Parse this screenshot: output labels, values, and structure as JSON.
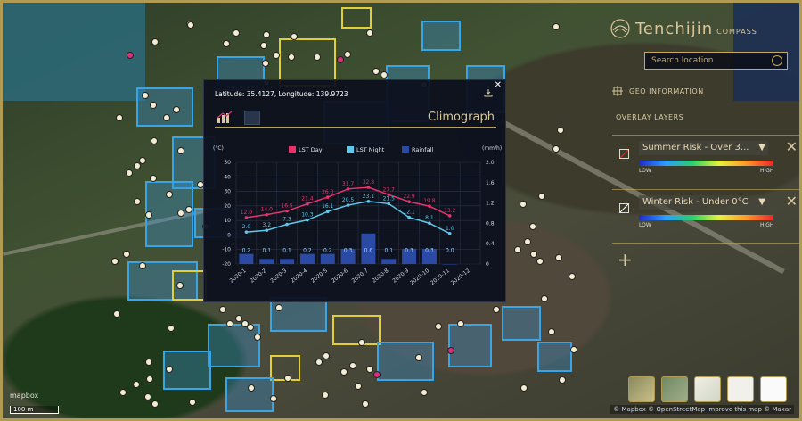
{
  "app": {
    "name": "Tenchijin",
    "product": "COMPASS"
  },
  "search": {
    "placeholder": "Search location"
  },
  "sections": {
    "geo": "GEO INFORMATION",
    "overlay": "OVERLAY LAYERS"
  },
  "layers": [
    {
      "label": "Summer Risk - Over 3...",
      "low": "LOW",
      "high": "HIGH",
      "swatch": "#c0392b"
    },
    {
      "label": "Winter Risk - Under 0°C",
      "low": "LOW",
      "high": "HIGH",
      "swatch": "#ffffff"
    }
  ],
  "popup": {
    "coords": "Latitude: 35.4127, Longitude: 139.9723",
    "title": "Climograph"
  },
  "chart_data": {
    "type": "line",
    "categories": [
      "2020-1",
      "2020-2",
      "2020-3",
      "2020-4",
      "2020-5",
      "2020-6",
      "2020-7",
      "2020-8",
      "2020-9",
      "2020-10",
      "2020-11",
      "2020-12"
    ],
    "series": [
      {
        "name": "LST Day",
        "type": "line",
        "color": "#e8336e",
        "axis": "left",
        "values": [
          12.0,
          14.0,
          16.5,
          21.4,
          26.0,
          31.7,
          32.8,
          27.7,
          22.9,
          19.8,
          13.2,
          null
        ]
      },
      {
        "name": "LST Night",
        "type": "line",
        "color": "#5ec8e8",
        "axis": "left",
        "values": [
          2.0,
          3.2,
          7.3,
          10.3,
          16.1,
          20.5,
          23.1,
          21.5,
          12.1,
          8.1,
          1.0,
          null
        ]
      },
      {
        "name": "Rainfall",
        "type": "bar",
        "color": "#2a4aa6",
        "axis": "right",
        "values": [
          0.2,
          0.1,
          0.1,
          0.2,
          0.2,
          0.3,
          0.6,
          0.1,
          0.3,
          0.3,
          0.0,
          null
        ]
      }
    ],
    "day_labels": [
      "12.0",
      "14.0",
      "16.5",
      "21.4",
      "26.0",
      "31.7",
      "32.8",
      "27.7",
      "22.9",
      "19.8",
      "13.2"
    ],
    "night_labels": [
      "2.0",
      "3.2",
      "7.3",
      "10.3",
      "16.1",
      "20.5",
      "23.1",
      "21.5",
      "12.1",
      "8.1",
      "1.0"
    ],
    "rain_labels": [
      "0.2",
      "0.1",
      "0.1",
      "0.2",
      "0.2",
      "0.3",
      "0.6",
      "0.1",
      "0.3",
      "0.3",
      "0.0"
    ],
    "ylabel_left": "(°C)",
    "ylabel_right": "(mm/h)",
    "ylim_left": [
      -20,
      50
    ],
    "ylim_right": [
      0,
      2.0
    ],
    "left_ticks": [
      "50",
      "40",
      "30",
      "20",
      "10",
      "0",
      "-10",
      "-20"
    ],
    "right_ticks": [
      "2.0",
      "1.6",
      "1.2",
      "0.8",
      "0.4",
      "0"
    ],
    "legend_position": "top-center",
    "grid": true
  },
  "attribution": "© Mapbox © OpenStreetMap Improve this map © Maxar",
  "mapbox_logo": "mapbox",
  "scale_label": "100 m",
  "colors": {
    "gold": "#b19a52",
    "parcel": "#3aa5e6"
  }
}
